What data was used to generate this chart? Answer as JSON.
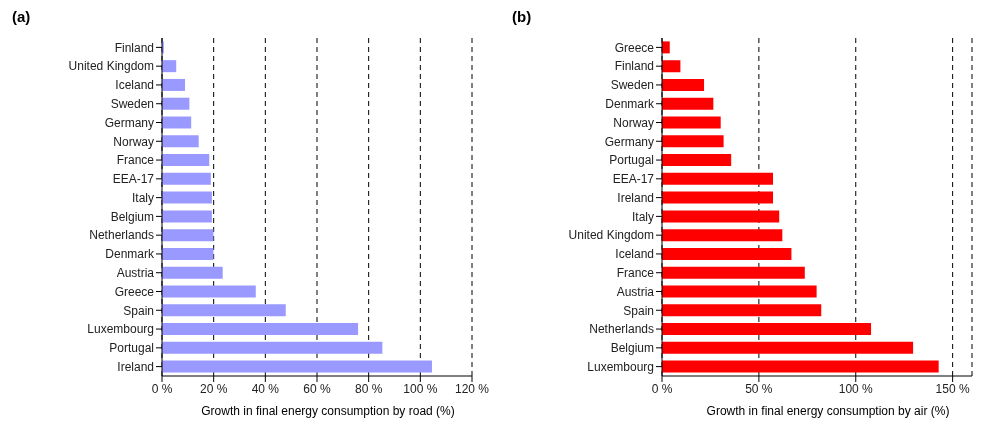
{
  "chart_data": [
    {
      "type": "bar",
      "orientation": "horizontal",
      "title": "(a)",
      "xlabel": "Growth in final energy consumption by road (%)",
      "categories": [
        "Finland",
        "United Kingdom",
        "Iceland",
        "Sweden",
        "Germany",
        "Norway",
        "France",
        "EEA-17",
        "Italy",
        "Belgium",
        "Netherlands",
        "Denmark",
        "Austria",
        "Greece",
        "Spain",
        "Luxembourg",
        "Portugal",
        "Ireland"
      ],
      "values": [
        0.7,
        5.5,
        8.9,
        10.6,
        11.3,
        14.2,
        18.3,
        18.9,
        19.3,
        19.3,
        19.9,
        19.9,
        23.5,
        36.3,
        47.9,
        75.9,
        85.3,
        104.5
      ],
      "color": "#9999ff",
      "xlim": [
        0,
        120
      ],
      "xticks": [
        {
          "value": 0,
          "label": "0 %"
        },
        {
          "value": 20,
          "label": "20 %"
        },
        {
          "value": 40,
          "label": "40 %"
        },
        {
          "value": 60,
          "label": "60 %"
        },
        {
          "value": 80,
          "label": "80 %"
        },
        {
          "value": 100,
          "label": "100 %"
        },
        {
          "value": 120,
          "label": "120 %"
        }
      ],
      "grid": "x"
    },
    {
      "type": "bar",
      "orientation": "horizontal",
      "title": "(b)",
      "xlabel": "Growth in final energy consumption by air (%)",
      "categories": [
        "Greece",
        "Finland",
        "Sweden",
        "Denmark",
        "Norway",
        "Germany",
        "Portugal",
        "EEA-17",
        "Ireland",
        "Italy",
        "United Kingdom",
        "Iceland",
        "France",
        "Austria",
        "Spain",
        "Netherlands",
        "Belgium",
        "Luxembourg"
      ],
      "values": [
        4.0,
        9.5,
        21.7,
        26.5,
        30.3,
        31.8,
        35.7,
        57.3,
        57.3,
        60.5,
        62.1,
        66.8,
        73.7,
        79.8,
        82.2,
        107.9,
        129.6,
        142.8
      ],
      "color": "#ff0000",
      "xlim": [
        0,
        160
      ],
      "xticks": [
        {
          "value": 0,
          "label": "0 %"
        },
        {
          "value": 50,
          "label": "50 %"
        },
        {
          "value": 100,
          "label": "100 %"
        },
        {
          "value": 150,
          "label": "150 %"
        }
      ],
      "grid": "x"
    }
  ]
}
